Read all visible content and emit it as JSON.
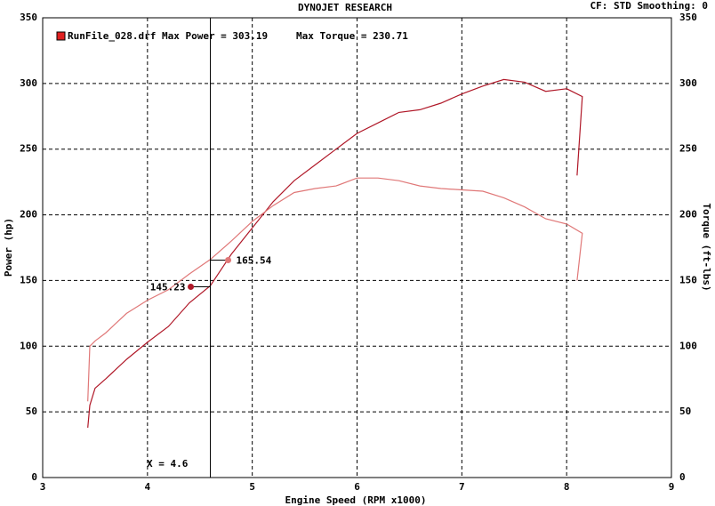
{
  "chart_data": {
    "type": "line",
    "title": "DYNOJET RESEARCH",
    "settings_label": "CF: STD  Smoothing: 0",
    "legend_file": "RunFile_028.drf Max Power = 303.19",
    "legend_torque": "Max Torque = 230.71",
    "legend_color": "#e02020",
    "xlabel": "Engine Speed (RPM x1000)",
    "ylabel": "Power (hp)",
    "y2label": "Torque (ft-lbs)",
    "xlim": [
      3,
      9
    ],
    "xticks": [
      3,
      4,
      5,
      6,
      7,
      8,
      9
    ],
    "ylim": [
      0,
      350
    ],
    "yticks": [
      0,
      50,
      100,
      150,
      200,
      250,
      300,
      350
    ],
    "y2lim": [
      0,
      350
    ],
    "y2ticks": [
      0,
      50,
      100,
      150,
      200,
      250,
      300,
      350
    ],
    "grid": true,
    "x": [
      3.43,
      3.45,
      3.5,
      3.6,
      3.8,
      4.0,
      4.2,
      4.4,
      4.6,
      4.8,
      5.0,
      5.2,
      5.4,
      5.6,
      5.8,
      6.0,
      6.2,
      6.4,
      6.6,
      6.8,
      7.0,
      7.2,
      7.4,
      7.6,
      7.8,
      8.0,
      8.15,
      8.1
    ],
    "series": [
      {
        "color": "#b01828",
        "values": [
          38,
          55,
          68,
          75,
          90,
          103,
          115,
          133,
          146,
          170,
          190,
          210,
          226,
          238,
          250,
          262,
          270,
          278,
          280,
          285,
          292,
          298,
          303,
          301,
          294,
          296,
          290,
          230
        ]
      },
      {
        "color": "#e07878",
        "axis": "y2",
        "values": [
          58,
          100,
          104,
          110,
          125,
          135,
          143,
          155,
          166,
          180,
          195,
          207,
          217,
          220,
          222,
          228,
          228,
          226,
          222,
          220,
          219,
          218,
          213,
          206,
          197,
          193,
          186,
          150
        ]
      }
    ],
    "cursor": {
      "x": 4.6,
      "label": "X = 4.6",
      "power": 145.23,
      "torque": 165.54
    }
  }
}
